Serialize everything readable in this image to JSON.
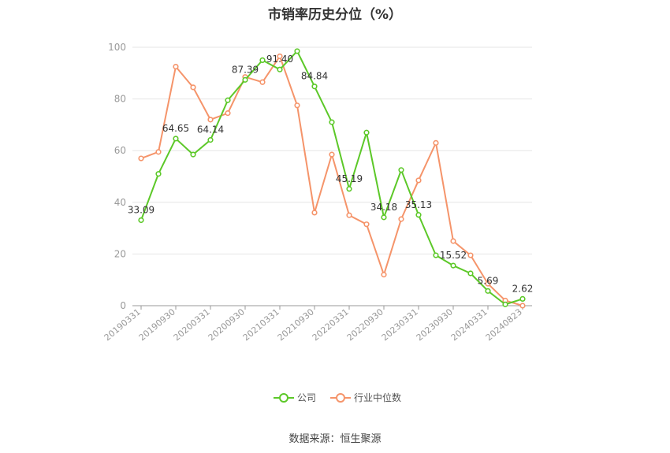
{
  "title": "市销率历史分位（%）",
  "source": "数据来源：恒生聚源",
  "colors": {
    "company": "#5cc828",
    "industry": "#f5946a",
    "grid": "#e6e6e6",
    "axis": "#999999",
    "tick": "#999999",
    "label": "#333333"
  },
  "legend": [
    {
      "name": "公司",
      "color": "#5cc828"
    },
    {
      "name": "行业中位数",
      "color": "#f5946a"
    }
  ],
  "chart_data": {
    "type": "line",
    "title": "市销率历史分位（%）",
    "x": [
      "20190331",
      "20190630",
      "20190930",
      "20191231",
      "20200331",
      "20200630",
      "20200930",
      "20201231",
      "20210331",
      "20210630",
      "20210930",
      "20211231",
      "20220331",
      "20220630",
      "20220930",
      "20221231",
      "20230331",
      "20230630",
      "20230930",
      "20231231",
      "20240331",
      "20240630",
      "20240823"
    ],
    "x_tick_labels": [
      "20190331",
      "20190930",
      "20200331",
      "20200930",
      "20210331",
      "20210930",
      "20220331",
      "20220930",
      "20230331",
      "20230930",
      "20240331",
      "20240823"
    ],
    "ylim": [
      0,
      100
    ],
    "y_ticks": [
      0,
      20,
      40,
      60,
      80,
      100
    ],
    "grid": true,
    "legend_position": "bottom",
    "series": [
      {
        "name": "公司",
        "values": [
          33.09,
          51,
          64.65,
          58.5,
          64.14,
          79.5,
          87.39,
          95,
          91.4,
          98.5,
          84.84,
          71,
          45.19,
          67,
          34.18,
          52.5,
          35.13,
          19.5,
          15.52,
          12.5,
          5.69,
          0.5,
          2.62
        ],
        "labels": [
          "33.09",
          null,
          "64.65",
          null,
          "64.14",
          null,
          "87.39",
          null,
          "91.40",
          null,
          "84.84",
          null,
          "45.19",
          null,
          "34.18",
          null,
          "35.13",
          null,
          "15.52",
          null,
          "5.69",
          null,
          "2.62"
        ]
      },
      {
        "name": "行业中位数",
        "values": [
          57,
          59.5,
          92.5,
          84.5,
          72,
          74.5,
          88.5,
          86.5,
          96.5,
          77.5,
          36,
          58.5,
          35,
          31.5,
          12,
          33.5,
          48.5,
          63,
          25,
          19.5,
          8.5,
          2,
          0
        ]
      }
    ]
  }
}
